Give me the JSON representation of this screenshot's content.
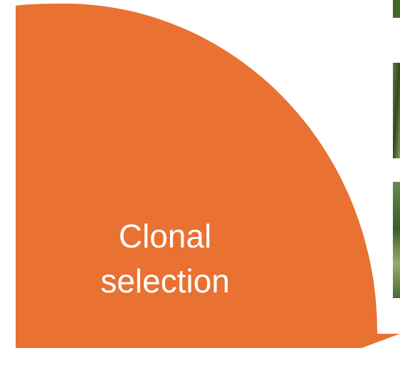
{
  "stage": {
    "label_lines": [
      "Clonal",
      "selection"
    ]
  }
}
